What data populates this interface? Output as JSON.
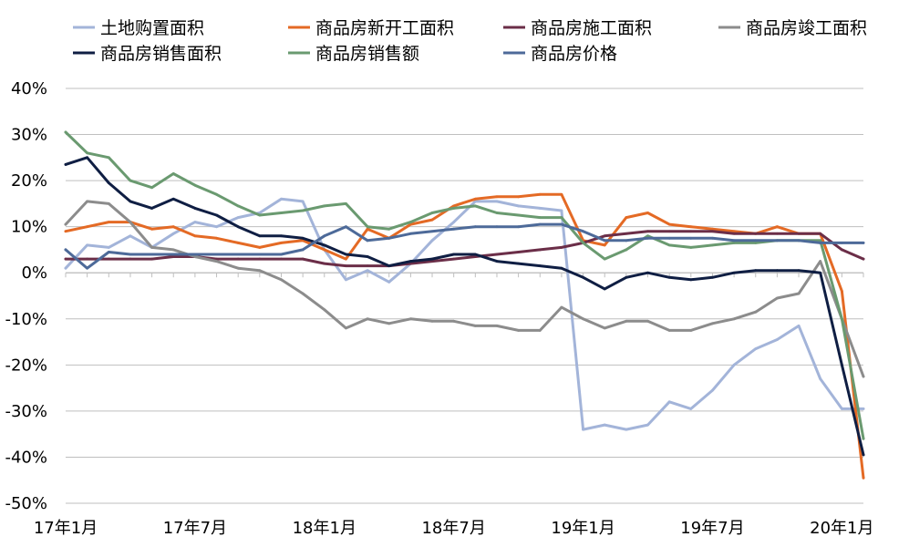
{
  "chart_data": {
    "type": "line",
    "title": "",
    "xlabel": "",
    "ylabel": "",
    "ylim": [
      -50,
      40
    ],
    "yticks": [
      40,
      30,
      20,
      10,
      0,
      -10,
      -20,
      -30,
      -40,
      -50
    ],
    "ytick_labels": [
      "40%",
      "30%",
      "20%",
      "10%",
      "0%",
      "-10%",
      "-20%",
      "-30%",
      "-40%",
      "-50%"
    ],
    "grid": true,
    "legend_position": "top",
    "x": [
      "17年1月",
      "17年2月",
      "17年3月",
      "17年4月",
      "17年5月",
      "17年6月",
      "17年7月",
      "17年8月",
      "17年9月",
      "17年10月",
      "17年11月",
      "17年12月",
      "18年1月",
      "18年2月",
      "18年3月",
      "18年4月",
      "18年5月",
      "18年6月",
      "18年7月",
      "18年8月",
      "18年9月",
      "18年10月",
      "18年11月",
      "18年12月",
      "19年1月",
      "19年2月",
      "19年3月",
      "19年4月",
      "19年5月",
      "19年6月",
      "19年7月",
      "19年8月",
      "19年9月",
      "19年10月",
      "19年11月",
      "19年12月",
      "20年1月",
      "20年2月"
    ],
    "xtick_labels": [
      {
        "label": "17年1月",
        "index": 0
      },
      {
        "label": "17年7月",
        "index": 6
      },
      {
        "label": "18年1月",
        "index": 12
      },
      {
        "label": "18年7月",
        "index": 18
      },
      {
        "label": "19年1月",
        "index": 24
      },
      {
        "label": "19年7月",
        "index": 30
      },
      {
        "label": "20年1月",
        "index": 36
      }
    ],
    "series": [
      {
        "name": "土地购置面积",
        "color": "#a3b4d9",
        "values": [
          1,
          6,
          5.5,
          8,
          5.5,
          8.5,
          11,
          10,
          12,
          13,
          16,
          15.5,
          5,
          -1.5,
          0.5,
          -2,
          2,
          7,
          11,
          15.5,
          15.5,
          14.5,
          14,
          13.5,
          -34,
          -33,
          -34,
          -33,
          -28,
          -29.5,
          -25.5,
          -20,
          -16.5,
          -14.5,
          -11.5,
          -23,
          -29.5,
          -29.5
        ]
      },
      {
        "name": "商品房新开工面积",
        "color": "#e46a25",
        "values": [
          9,
          10,
          11,
          11,
          9.5,
          10,
          8,
          7.5,
          6.5,
          5.5,
          6.5,
          7,
          5,
          3,
          9.5,
          7.5,
          10.5,
          11.5,
          14.5,
          16,
          16.5,
          16.5,
          17,
          17,
          7,
          6,
          12,
          13,
          10.5,
          10,
          9.5,
          9,
          8.5,
          10,
          8.5,
          8.5,
          -4,
          -44.5
        ]
      },
      {
        "name": "商品房施工面积",
        "color": "#6b2e48",
        "values": [
          3,
          3,
          3,
          3,
          3,
          3.5,
          3.5,
          3,
          3,
          3,
          3,
          3,
          2,
          1.5,
          1.5,
          1.5,
          2,
          2.5,
          3,
          3.5,
          4,
          4.5,
          5,
          5.5,
          6.5,
          8,
          8.5,
          9,
          9,
          9,
          9,
          8.5,
          8.5,
          8.5,
          8.5,
          8.5,
          5,
          3
        ]
      },
      {
        "name": "商品房竣工面积",
        "color": "#8c8c8c",
        "values": [
          10.5,
          15.5,
          15,
          11,
          5.5,
          5,
          3.5,
          2.5,
          1,
          0.5,
          -1.5,
          -4.5,
          -8,
          -12,
          -10,
          -11,
          -10,
          -10.5,
          -10.5,
          -11.5,
          -11.5,
          -12.5,
          -12.5,
          -7.5,
          -10,
          -12,
          -10.5,
          -10.5,
          -12.5,
          -12.5,
          -11,
          -10,
          -8.5,
          -5.5,
          -4.5,
          2.5,
          -10,
          -22.5
        ]
      },
      {
        "name": "商品房销售面积",
        "color": "#0f1e43",
        "values": [
          23.5,
          25,
          19.5,
          15.5,
          14,
          16,
          14,
          12.5,
          10,
          8,
          8,
          7.5,
          6,
          4,
          3.5,
          1.5,
          2.5,
          3,
          4,
          4,
          2.5,
          2,
          1.5,
          1,
          -1,
          -3.5,
          -1,
          0,
          -1,
          -1.5,
          -1,
          0,
          0.5,
          0.5,
          0.5,
          0,
          -20,
          -39.5
        ]
      },
      {
        "name": "商品房销售额",
        "color": "#6a9a70",
        "values": [
          30.5,
          26,
          25,
          20,
          18.5,
          21.5,
          19,
          17,
          14.5,
          12.5,
          13,
          13.5,
          14.5,
          15,
          10,
          9.5,
          11,
          13,
          14,
          14.5,
          13,
          12.5,
          12,
          12,
          6.5,
          3,
          5,
          8,
          6,
          5.5,
          6,
          6.5,
          6.5,
          7,
          7,
          7,
          -10,
          -36
        ]
      },
      {
        "name": "商品房价格",
        "color": "#4d6a99",
        "values": [
          5,
          1,
          4.5,
          4,
          4,
          4,
          4,
          4,
          4,
          4,
          4,
          5,
          8,
          10,
          7,
          7.5,
          8.5,
          9,
          9.5,
          10,
          10,
          10,
          10.5,
          10.5,
          9,
          7,
          7,
          7.5,
          7.5,
          7.5,
          7.5,
          7,
          7,
          7,
          7,
          6.5,
          6.5,
          6.5
        ]
      }
    ]
  }
}
